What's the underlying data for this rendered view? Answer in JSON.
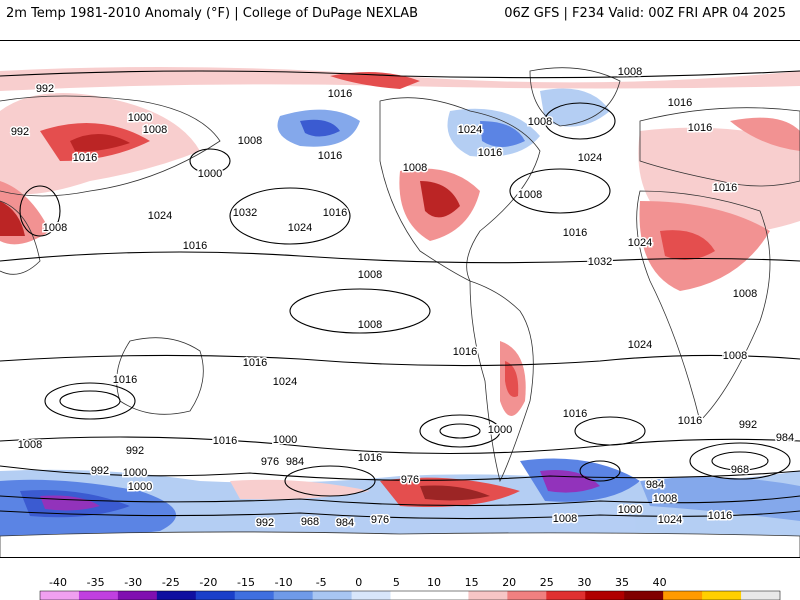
{
  "header": {
    "left": "2m Temp 1981-2010 Anomaly (°F) | College of DuPage NEXLAB",
    "right": "06Z GFS | F234 Valid: 00Z FRI APR 04 2025"
  },
  "colors": {
    "warm_light": "#f7c6c6",
    "warm_mid": "#f08080",
    "warm_strong": "#d92020",
    "warm_extreme": "#8b0000",
    "cold_light": "#bcd6f5",
    "cold_mid": "#5b8fe6",
    "cold_strong": "#1a3fc9",
    "cold_extreme": "#9b1bd6",
    "land_outline": "#333333",
    "isobar": "#000000"
  },
  "isobar_labels": [
    "1008",
    "992",
    "1000",
    "992",
    "1008",
    "1016",
    "1016",
    "1008",
    "1000",
    "1016",
    "1008",
    "1032",
    "1024",
    "1016",
    "1024",
    "1016",
    "1008",
    "1024",
    "1016",
    "1016",
    "1024",
    "1008",
    "1016",
    "1032",
    "1024",
    "1016",
    "1016",
    "1008",
    "1008",
    "1008",
    "1008",
    "1016",
    "1016",
    "1024",
    "1016",
    "1024",
    "1008",
    "1016",
    "1016",
    "1000",
    "1016",
    "1016",
    "1000",
    "992",
    "984",
    "1000",
    "976",
    "984",
    "992",
    "1008",
    "1000",
    "992",
    "976",
    "984",
    "968",
    "992",
    "1008",
    "968",
    "984",
    "976",
    "1008",
    "1000",
    "1024",
    "1016"
  ],
  "colorbar": {
    "ticks": [
      "-40",
      "-35",
      "-30",
      "-25",
      "-20",
      "-15",
      "-10",
      "-5",
      "0",
      "5",
      "10",
      "15",
      "20",
      "25",
      "30",
      "35",
      "40"
    ],
    "colors": [
      "#f0a0f0",
      "#c040e0",
      "#8010b0",
      "#1010a0",
      "#1a3fc9",
      "#3f6fe0",
      "#6f9ae8",
      "#a8c6f2",
      "#d8e6fa",
      "#ffffff",
      "#ffffff",
      "#f7c6c6",
      "#f08080",
      "#e03030",
      "#b00000",
      "#800000",
      "#ff9a00",
      "#ffd000",
      "#e8e8e8"
    ]
  }
}
